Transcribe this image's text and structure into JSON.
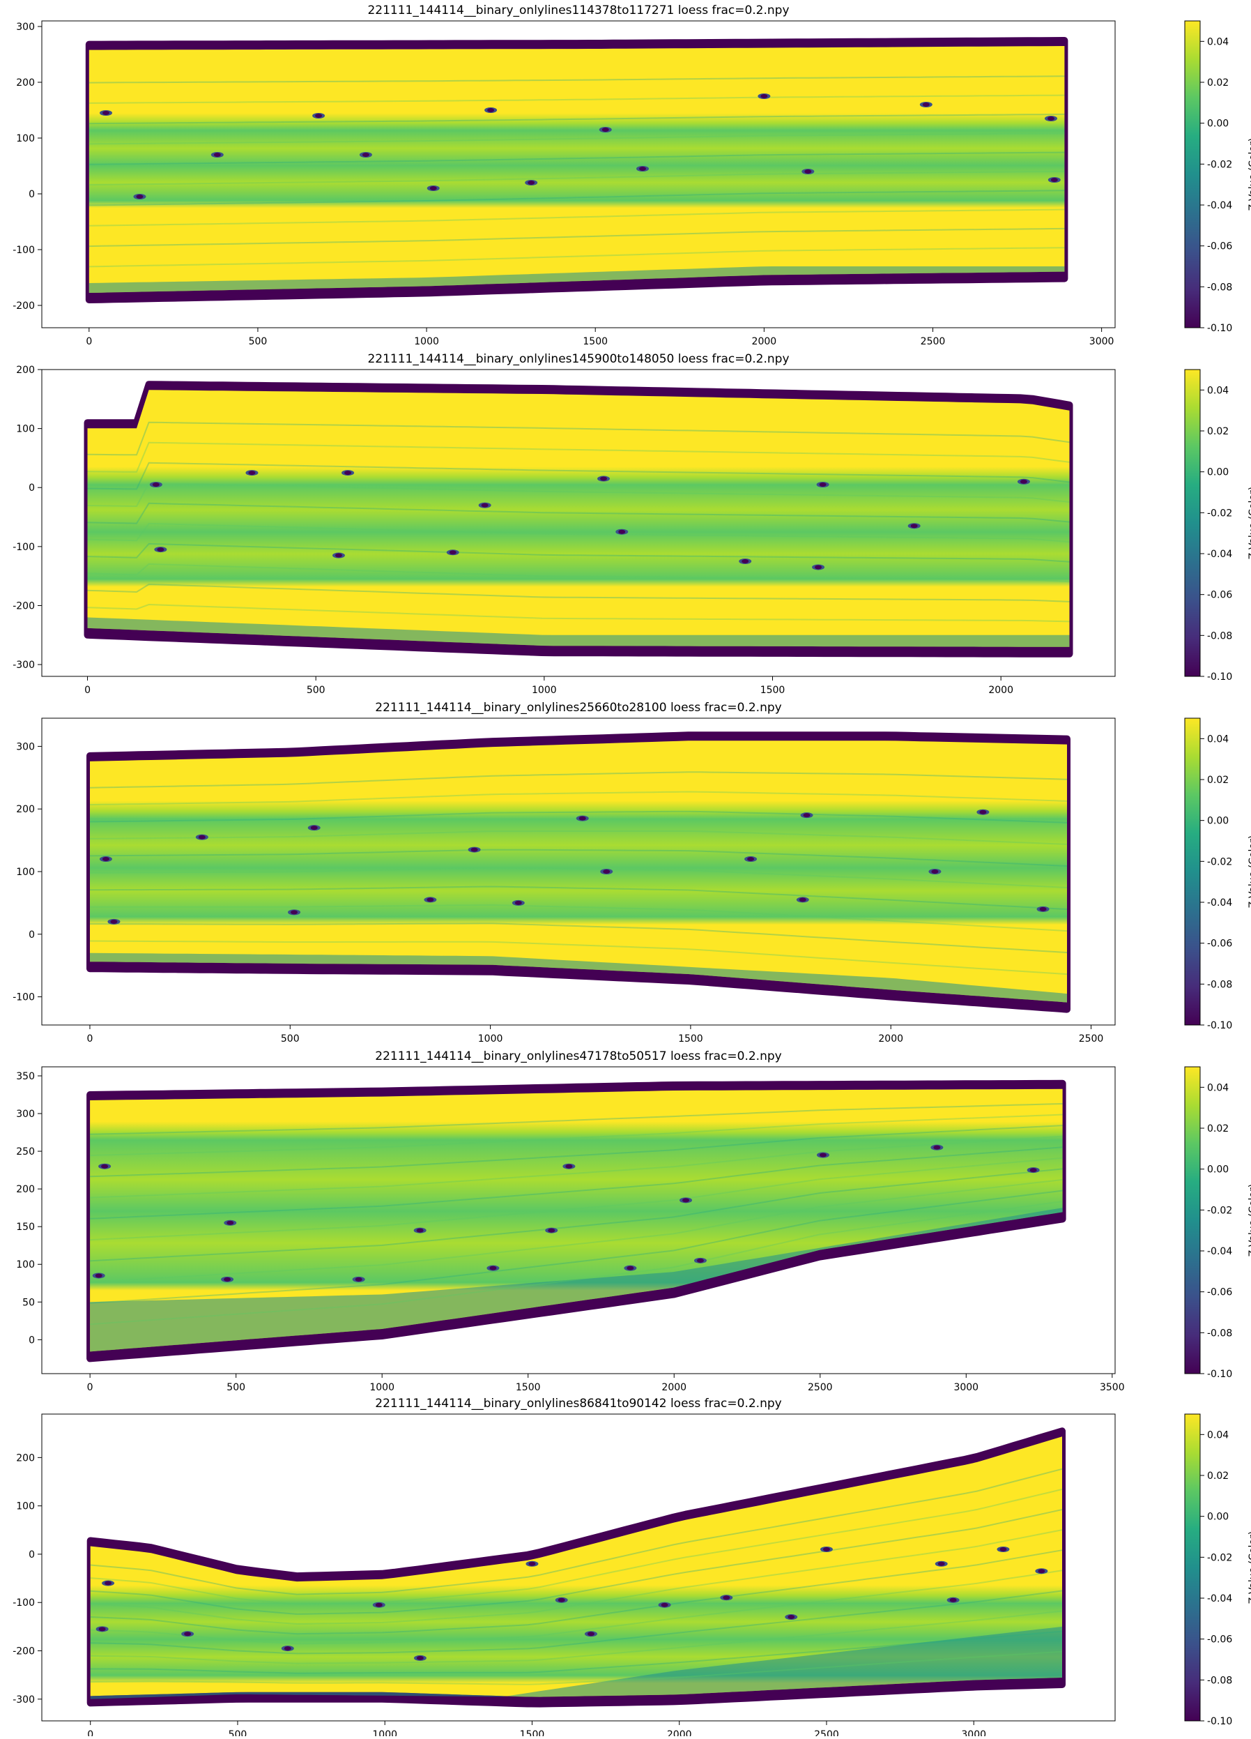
{
  "figure": {
    "colormap": [
      "#440154",
      "#472c7a",
      "#3b518b",
      "#2c718e",
      "#21908d",
      "#27ad81",
      "#5cc863",
      "#aadc32",
      "#fde725"
    ],
    "colorbar": {
      "label": "Z Value (Color)",
      "range": [
        -0.1,
        0.05
      ],
      "ticks": [
        "-0.10",
        "-0.08",
        "-0.06",
        "-0.04",
        "-0.02",
        "0.00",
        "0.02",
        "0.04"
      ]
    }
  },
  "chart_data": [
    {
      "type": "scatter",
      "title": "221111_144114__binary_onlylines114378to117271 loess frac=0.2.npy",
      "xlabel": "",
      "ylabel": "",
      "xlim": [
        -140,
        3040
      ],
      "ylim": [
        -240,
        310
      ],
      "xticks": [
        0,
        500,
        1000,
        1500,
        2000,
        2500,
        3000
      ],
      "yticks": [
        -200,
        -100,
        0,
        100,
        200,
        300
      ],
      "x_extent": [
        0,
        2890
      ],
      "top_edge": [
        [
          0,
          268
        ],
        [
          1500,
          270
        ],
        [
          2890,
          275
        ]
      ],
      "bottom_edge": [
        [
          0,
          -190
        ],
        [
          1000,
          -178
        ],
        [
          2000,
          -158
        ],
        [
          2890,
          -152
        ]
      ],
      "lower_yellow_edge": [
        [
          0,
          -160
        ],
        [
          1000,
          -150
        ],
        [
          2000,
          -130
        ],
        [
          2890,
          -130
        ]
      ],
      "green_band_top": 130,
      "green_band_bottom": -30,
      "markers": [
        [
          50,
          145
        ],
        [
          380,
          70
        ],
        [
          680,
          140
        ],
        [
          1190,
          150
        ],
        [
          2000,
          175
        ],
        [
          2480,
          160
        ],
        [
          2850,
          135
        ],
        [
          150,
          -5
        ],
        [
          1020,
          10
        ],
        [
          1310,
          20
        ],
        [
          1640,
          45
        ],
        [
          2130,
          40
        ],
        [
          2860,
          25
        ],
        [
          820,
          70
        ],
        [
          1530,
          115
        ]
      ],
      "colorbar_ticks": [
        "-0.10",
        "-0.08",
        "-0.06",
        "-0.04",
        "-0.02",
        "0.00",
        "0.02",
        "0.04"
      ],
      "colorbar_label": "Z Value (Color)"
    },
    {
      "type": "scatter",
      "title": "221111_144114__binary_onlylines145900to148050 loess frac=0.2.npy",
      "xlabel": "",
      "ylabel": "",
      "xlim": [
        -100,
        2250
      ],
      "ylim": [
        -320,
        200
      ],
      "xticks": [
        0,
        500,
        1000,
        1500,
        2000
      ],
      "yticks": [
        -300,
        -200,
        -100,
        0,
        100,
        200
      ],
      "x_extent": [
        0,
        2150
      ],
      "top_edge": [
        [
          0,
          110
        ],
        [
          110,
          110
        ],
        [
          120,
          175
        ],
        [
          1000,
          168
        ],
        [
          2060,
          152
        ],
        [
          2150,
          140
        ]
      ],
      "bottom_edge": [
        [
          0,
          -250
        ],
        [
          1000,
          -280
        ],
        [
          2150,
          -282
        ]
      ],
      "lower_yellow_edge": [
        [
          0,
          -220
        ],
        [
          1000,
          -250
        ],
        [
          2150,
          -250
        ]
      ],
      "green_band_top": 20,
      "green_band_bottom": -175,
      "markers": [
        [
          150,
          5
        ],
        [
          360,
          25
        ],
        [
          570,
          25
        ],
        [
          870,
          -30
        ],
        [
          1130,
          15
        ],
        [
          1610,
          5
        ],
        [
          2050,
          10
        ],
        [
          160,
          -105
        ],
        [
          550,
          -115
        ],
        [
          800,
          -110
        ],
        [
          1170,
          -75
        ],
        [
          1440,
          -125
        ],
        [
          1810,
          -65
        ],
        [
          1600,
          -135
        ]
      ],
      "colorbar_ticks": [
        "-0.10",
        "-0.08",
        "-0.06",
        "-0.04",
        "-0.02",
        "0.00",
        "0.02",
        "0.04"
      ],
      "colorbar_label": "Z Value (Color)"
    },
    {
      "type": "scatter",
      "title": "221111_144114__binary_onlylines25660to28100 loess frac=0.2.npy",
      "xlabel": "",
      "ylabel": "",
      "xlim": [
        -120,
        2560
      ],
      "ylim": [
        -145,
        345
      ],
      "xticks": [
        0,
        500,
        1000,
        1500,
        2000,
        2500
      ],
      "yticks": [
        -100,
        0,
        100,
        200,
        300
      ],
      "x_extent": [
        0,
        2440
      ],
      "top_edge": [
        [
          0,
          285
        ],
        [
          500,
          292
        ],
        [
          1000,
          308
        ],
        [
          1500,
          318
        ],
        [
          2000,
          318
        ],
        [
          2440,
          312
        ]
      ],
      "bottom_edge": [
        [
          0,
          -55
        ],
        [
          500,
          -58
        ],
        [
          1000,
          -60
        ],
        [
          1500,
          -75
        ],
        [
          2000,
          -100
        ],
        [
          2440,
          -120
        ]
      ],
      "lower_yellow_edge": [
        [
          0,
          -30
        ],
        [
          1000,
          -35
        ],
        [
          2000,
          -70
        ],
        [
          2440,
          -95
        ]
      ],
      "green_band_top": 200,
      "green_band_bottom": 10,
      "markers": [
        [
          40,
          120
        ],
        [
          280,
          155
        ],
        [
          560,
          170
        ],
        [
          960,
          135
        ],
        [
          1230,
          185
        ],
        [
          1650,
          120
        ],
        [
          1790,
          190
        ],
        [
          2230,
          195
        ],
        [
          60,
          20
        ],
        [
          510,
          35
        ],
        [
          850,
          55
        ],
        [
          1290,
          100
        ],
        [
          1780,
          55
        ],
        [
          2110,
          100
        ],
        [
          1070,
          50
        ],
        [
          2380,
          40
        ]
      ],
      "colorbar_ticks": [
        "-0.10",
        "-0.08",
        "-0.06",
        "-0.04",
        "-0.02",
        "0.00",
        "0.02",
        "0.04"
      ],
      "colorbar_label": "Z Value (Color)"
    },
    {
      "type": "scatter",
      "title": "221111_144114__binary_onlylines47178to50517 loess frac=0.2.npy",
      "xlabel": "",
      "ylabel": "",
      "xlim": [
        -165,
        3510
      ],
      "ylim": [
        -45,
        362
      ],
      "xticks": [
        0,
        500,
        1000,
        1500,
        2000,
        2500,
        3000,
        3500
      ],
      "yticks": [
        0,
        50,
        100,
        150,
        200,
        250,
        300,
        350
      ],
      "x_extent": [
        0,
        3330
      ],
      "top_edge": [
        [
          0,
          325
        ],
        [
          1000,
          330
        ],
        [
          2000,
          338
        ],
        [
          3330,
          340
        ]
      ],
      "bottom_edge": [
        [
          0,
          -25
        ],
        [
          1000,
          5
        ],
        [
          2000,
          60
        ],
        [
          2500,
          110
        ],
        [
          3330,
          160
        ]
      ],
      "lower_yellow_edge": [
        [
          0,
          50
        ],
        [
          1000,
          60
        ],
        [
          2000,
          90
        ],
        [
          3330,
          175
        ]
      ],
      "green_band_top": 280,
      "green_band_bottom": 60,
      "markers": [
        [
          50,
          230
        ],
        [
          480,
          155
        ],
        [
          920,
          80
        ],
        [
          1130,
          145
        ],
        [
          1640,
          230
        ],
        [
          2040,
          185
        ],
        [
          2510,
          245
        ],
        [
          2900,
          255
        ],
        [
          3230,
          225
        ],
        [
          30,
          85
        ],
        [
          470,
          80
        ],
        [
          1380,
          95
        ],
        [
          1580,
          145
        ],
        [
          1850,
          95
        ],
        [
          2090,
          105
        ]
      ],
      "colorbar_ticks": [
        "-0.10",
        "-0.08",
        "-0.06",
        "-0.04",
        "-0.02",
        "0.00",
        "0.02",
        "0.04"
      ],
      "colorbar_label": "Z Value (Color)"
    },
    {
      "type": "scatter",
      "title": "221111_144114__binary_onlylines86841to90142 loess frac=0.2.npy",
      "xlabel": "",
      "ylabel": "",
      "xlim": [
        -165,
        3480
      ],
      "ylim": [
        -345,
        290
      ],
      "xticks": [
        0,
        500,
        1000,
        1500,
        2000,
        2500,
        3000
      ],
      "yticks": [
        -300,
        -200,
        -100,
        0,
        100,
        200
      ],
      "x_extent": [
        0,
        3300
      ],
      "top_edge": [
        [
          0,
          28
        ],
        [
          200,
          15
        ],
        [
          500,
          -30
        ],
        [
          700,
          -45
        ],
        [
          1000,
          -40
        ],
        [
          1500,
          0
        ],
        [
          2000,
          80
        ],
        [
          2500,
          140
        ],
        [
          3000,
          200
        ],
        [
          3300,
          255
        ]
      ],
      "bottom_edge": [
        [
          0,
          -308
        ],
        [
          500,
          -300
        ],
        [
          1000,
          -300
        ],
        [
          1500,
          -310
        ],
        [
          2000,
          -305
        ],
        [
          2500,
          -290
        ],
        [
          3000,
          -275
        ],
        [
          3300,
          -270
        ]
      ],
      "lower_yellow_edge": [
        [
          0,
          -300
        ],
        [
          500,
          -290
        ],
        [
          1400,
          -295
        ],
        [
          2000,
          -240
        ],
        [
          3300,
          -150
        ]
      ],
      "green_band_top": -90,
      "green_band_bottom": -280,
      "markers": [
        [
          60,
          -60
        ],
        [
          40,
          -155
        ],
        [
          330,
          -165
        ],
        [
          670,
          -195
        ],
        [
          980,
          -105
        ],
        [
          1120,
          -215
        ],
        [
          1500,
          -20
        ],
        [
          1600,
          -95
        ],
        [
          1700,
          -165
        ],
        [
          1950,
          -105
        ],
        [
          2160,
          -90
        ],
        [
          2380,
          -130
        ],
        [
          2500,
          10
        ],
        [
          2890,
          -20
        ],
        [
          2930,
          -95
        ],
        [
          3100,
          10
        ],
        [
          3230,
          -35
        ]
      ],
      "colorbar_ticks": [
        "-0.10",
        "-0.08",
        "-0.06",
        "-0.04",
        "-0.02",
        "0.00",
        "0.02",
        "0.04"
      ],
      "colorbar_label": "Z Value (Color)"
    }
  ]
}
